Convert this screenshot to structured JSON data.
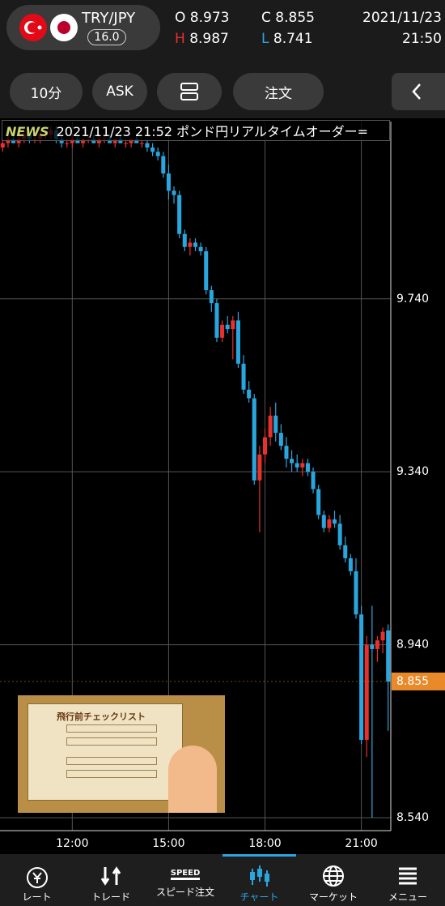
{
  "header": {
    "pair": "TRY/JPY",
    "spread": "16.0",
    "open_label": "O",
    "open": "8.973",
    "high_label": "H",
    "high": "8.987",
    "close_label": "C",
    "close": "8.855",
    "low_label": "L",
    "low": "8.741",
    "date": "2021/11/23",
    "time": "21:50"
  },
  "toolbar": {
    "interval": "10分",
    "side": "ASK",
    "order": "注文"
  },
  "news": {
    "badge": "NEWS",
    "text": "2021/11/23 21:52 ポンド円リアルタイムオーダー="
  },
  "overlay": {
    "title": "飛行前チェックリスト"
  },
  "chart_data": {
    "type": "candlestick",
    "categories": [
      null,
      null,
      null,
      null,
      null,
      null,
      null,
      null,
      null,
      null,
      null,
      null,
      null,
      "12:00",
      null,
      null,
      null,
      null,
      null,
      null,
      null,
      null,
      null,
      null,
      null,
      null,
      null,
      null,
      null,
      null,
      null,
      "15:00",
      null,
      null,
      null,
      null,
      null,
      null,
      null,
      null,
      null,
      null,
      null,
      null,
      null,
      null,
      null,
      null,
      null,
      "18:00",
      null,
      null,
      null,
      null,
      null,
      null,
      null,
      null,
      null,
      null,
      null,
      null,
      null,
      null,
      null,
      null,
      null,
      "21:00",
      null,
      null,
      null,
      null,
      null
    ],
    "open": [
      10.09,
      10.1,
      10.11,
      10.1,
      10.11,
      10.12,
      10.11,
      10.11,
      10.12,
      10.12,
      10.13,
      10.11,
      10.1,
      10.1,
      10.11,
      10.1,
      10.11,
      10.11,
      10.1,
      10.11,
      10.11,
      10.1,
      10.11,
      10.1,
      10.1,
      10.11,
      10.1,
      10.1,
      10.09,
      10.08,
      10.07,
      10.03,
      9.99,
      9.98,
      9.89,
      9.86,
      9.87,
      9.86,
      9.85,
      9.76,
      9.73,
      9.65,
      9.68,
      9.67,
      9.69,
      9.59,
      9.53,
      9.51,
      9.32,
      9.38,
      9.42,
      9.47,
      9.43,
      9.4,
      9.37,
      9.36,
      9.35,
      9.36,
      9.34,
      9.3,
      9.24,
      9.21,
      9.23,
      9.22,
      9.17,
      9.14,
      9.11,
      9.01,
      8.72,
      8.94,
      8.93,
      8.95,
      8.973
    ],
    "high": [
      10.11,
      10.12,
      10.12,
      10.12,
      10.13,
      10.13,
      10.12,
      10.13,
      10.13,
      10.14,
      10.14,
      10.12,
      10.11,
      10.12,
      10.12,
      10.11,
      10.12,
      10.12,
      10.12,
      10.12,
      10.12,
      10.11,
      10.12,
      10.11,
      10.11,
      10.12,
      10.11,
      10.11,
      10.1,
      10.09,
      10.08,
      10.05,
      10.0,
      9.99,
      9.9,
      9.88,
      9.88,
      9.87,
      9.86,
      9.77,
      9.74,
      9.69,
      9.7,
      9.7,
      9.71,
      9.61,
      9.55,
      9.52,
      9.4,
      9.44,
      9.49,
      9.5,
      9.45,
      9.42,
      9.39,
      9.38,
      9.37,
      9.37,
      9.35,
      9.31,
      9.25,
      9.24,
      9.25,
      9.24,
      9.19,
      9.15,
      9.14,
      9.03,
      8.96,
      9.03,
      8.96,
      8.98,
      8.987
    ],
    "low": [
      10.08,
      10.09,
      10.1,
      10.09,
      10.1,
      10.1,
      10.1,
      10.1,
      10.11,
      10.11,
      10.1,
      10.09,
      10.09,
      10.09,
      10.1,
      10.09,
      10.1,
      10.1,
      10.09,
      10.1,
      10.1,
      10.09,
      10.1,
      10.09,
      10.09,
      10.1,
      10.09,
      10.08,
      10.07,
      10.06,
      10.02,
      9.97,
      9.96,
      9.88,
      9.85,
      9.84,
      9.85,
      9.84,
      9.75,
      9.71,
      9.64,
      9.64,
      9.66,
      9.6,
      9.58,
      9.52,
      9.5,
      9.31,
      9.2,
      9.36,
      9.4,
      9.41,
      9.39,
      9.35,
      9.34,
      9.34,
      9.33,
      9.33,
      9.29,
      9.23,
      9.2,
      9.2,
      9.21,
      9.16,
      9.13,
      9.1,
      9.0,
      8.71,
      8.68,
      8.54,
      8.9,
      8.92,
      8.741
    ],
    "close": [
      10.1,
      10.11,
      10.1,
      10.11,
      10.12,
      10.11,
      10.11,
      10.12,
      10.12,
      10.13,
      10.11,
      10.1,
      10.1,
      10.11,
      10.1,
      10.11,
      10.11,
      10.1,
      10.11,
      10.11,
      10.1,
      10.11,
      10.1,
      10.1,
      10.11,
      10.1,
      10.1,
      10.09,
      10.08,
      10.07,
      10.03,
      9.99,
      9.98,
      9.89,
      9.86,
      9.87,
      9.86,
      9.85,
      9.76,
      9.73,
      9.65,
      9.68,
      9.67,
      9.69,
      9.59,
      9.53,
      9.51,
      9.32,
      9.38,
      9.42,
      9.47,
      9.43,
      9.4,
      9.37,
      9.36,
      9.35,
      9.36,
      9.34,
      9.3,
      9.24,
      9.21,
      9.23,
      9.22,
      9.17,
      9.14,
      9.11,
      9.01,
      8.72,
      8.94,
      8.93,
      8.95,
      8.97,
      8.855
    ],
    "up_color": "#e8302c",
    "down_color": "#2aa6df",
    "ylim": [
      8.51,
      10.15
    ],
    "yticks": [
      {
        "value": 8.54,
        "label": "8.540"
      },
      {
        "value": 8.94,
        "label": "8.940"
      },
      {
        "value": 9.34,
        "label": "9.340"
      },
      {
        "value": 9.74,
        "label": "9.740"
      }
    ],
    "grid": true,
    "price_tag_color": "#e8892a"
  },
  "nav": [
    "レート",
    "トレード",
    "SPEED",
    "スピード注文",
    "チャート",
    "マーケット",
    "メニュー"
  ]
}
